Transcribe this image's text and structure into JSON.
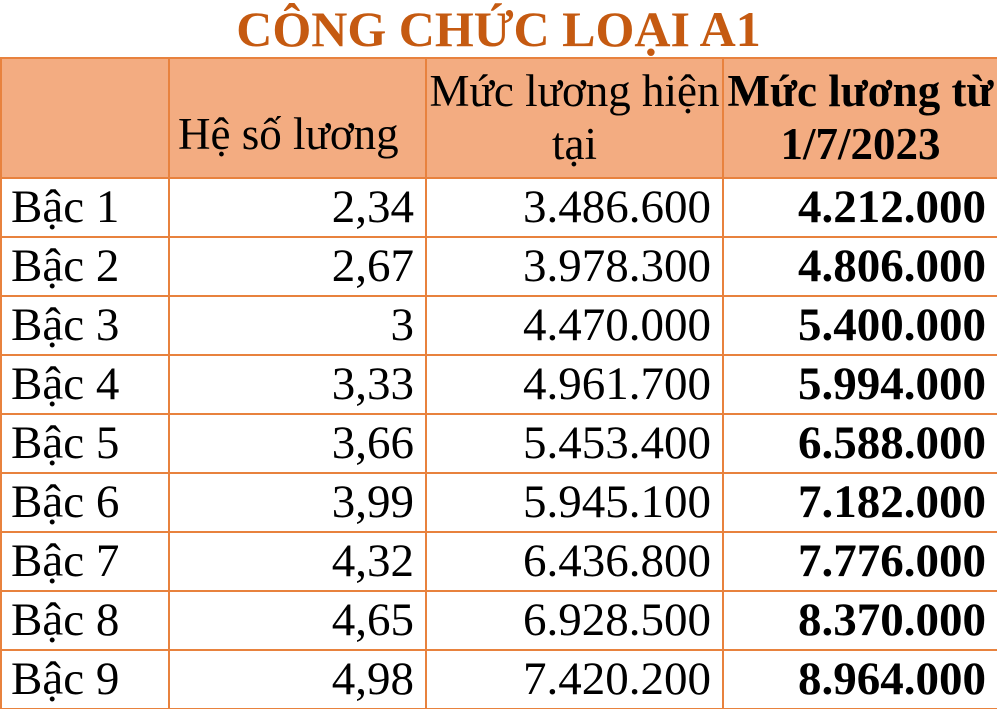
{
  "title": "CÔNG CHỨC LOẠI A1",
  "colors": {
    "title_color": "#C55A11",
    "header_fill": "#F3AC81",
    "border_color": "#E8823E",
    "text_color": "#000000"
  },
  "table": {
    "headers": {
      "col1": "",
      "col2": "Hệ số lương",
      "col3": "Mức lương hiện tại",
      "col4": "Mức lương từ 1/7/2023"
    },
    "rows": [
      {
        "label": "Bậc 1",
        "he_so": "2,34",
        "muc_luong_hien_tai": "3.486.600",
        "muc_luong_moi": "4.212.000"
      },
      {
        "label": "Bậc 2",
        "he_so": "2,67",
        "muc_luong_hien_tai": "3.978.300",
        "muc_luong_moi": "4.806.000"
      },
      {
        "label": "Bậc 3",
        "he_so": "3",
        "muc_luong_hien_tai": "4.470.000",
        "muc_luong_moi": "5.400.000"
      },
      {
        "label": "Bậc 4",
        "he_so": "3,33",
        "muc_luong_hien_tai": "4.961.700",
        "muc_luong_moi": "5.994.000"
      },
      {
        "label": "Bậc 5",
        "he_so": "3,66",
        "muc_luong_hien_tai": "5.453.400",
        "muc_luong_moi": "6.588.000"
      },
      {
        "label": "Bậc 6",
        "he_so": "3,99",
        "muc_luong_hien_tai": "5.945.100",
        "muc_luong_moi": "7.182.000"
      },
      {
        "label": "Bậc 7",
        "he_so": "4,32",
        "muc_luong_hien_tai": "6.436.800",
        "muc_luong_moi": "7.776.000"
      },
      {
        "label": "Bậc 8",
        "he_so": "4,65",
        "muc_luong_hien_tai": "6.928.500",
        "muc_luong_moi": "8.370.000"
      },
      {
        "label": "Bậc 9",
        "he_so": "4,98",
        "muc_luong_hien_tai": "7.420.200",
        "muc_luong_moi": "8.964.000"
      }
    ]
  },
  "chart_data": {
    "type": "table",
    "title": "CÔNG CHỨC LOẠI A1",
    "columns": [
      "",
      "Hệ số lương",
      "Mức lương hiện tại",
      "Mức lương từ 1/7/2023"
    ],
    "rows": [
      [
        "Bậc 1",
        "2,34",
        "3.486.600",
        "4.212.000"
      ],
      [
        "Bậc 2",
        "2,67",
        "3.978.300",
        "4.806.000"
      ],
      [
        "Bậc 3",
        "3",
        "4.470.000",
        "5.400.000"
      ],
      [
        "Bậc 4",
        "3,33",
        "4.961.700",
        "5.994.000"
      ],
      [
        "Bậc 5",
        "3,66",
        "5.453.400",
        "6.588.000"
      ],
      [
        "Bậc 6",
        "3,99",
        "5.945.100",
        "7.182.000"
      ],
      [
        "Bậc 7",
        "4,32",
        "6.436.800",
        "7.776.000"
      ],
      [
        "Bậc 8",
        "4,65",
        "6.928.500",
        "8.370.000"
      ],
      [
        "Bậc 9",
        "4,98",
        "7.420.200",
        "8.964.000"
      ]
    ],
    "notes": "Salary table for civil servants type A1: coefficient, current salary, salary from 1/7/2023 (bold column)"
  }
}
